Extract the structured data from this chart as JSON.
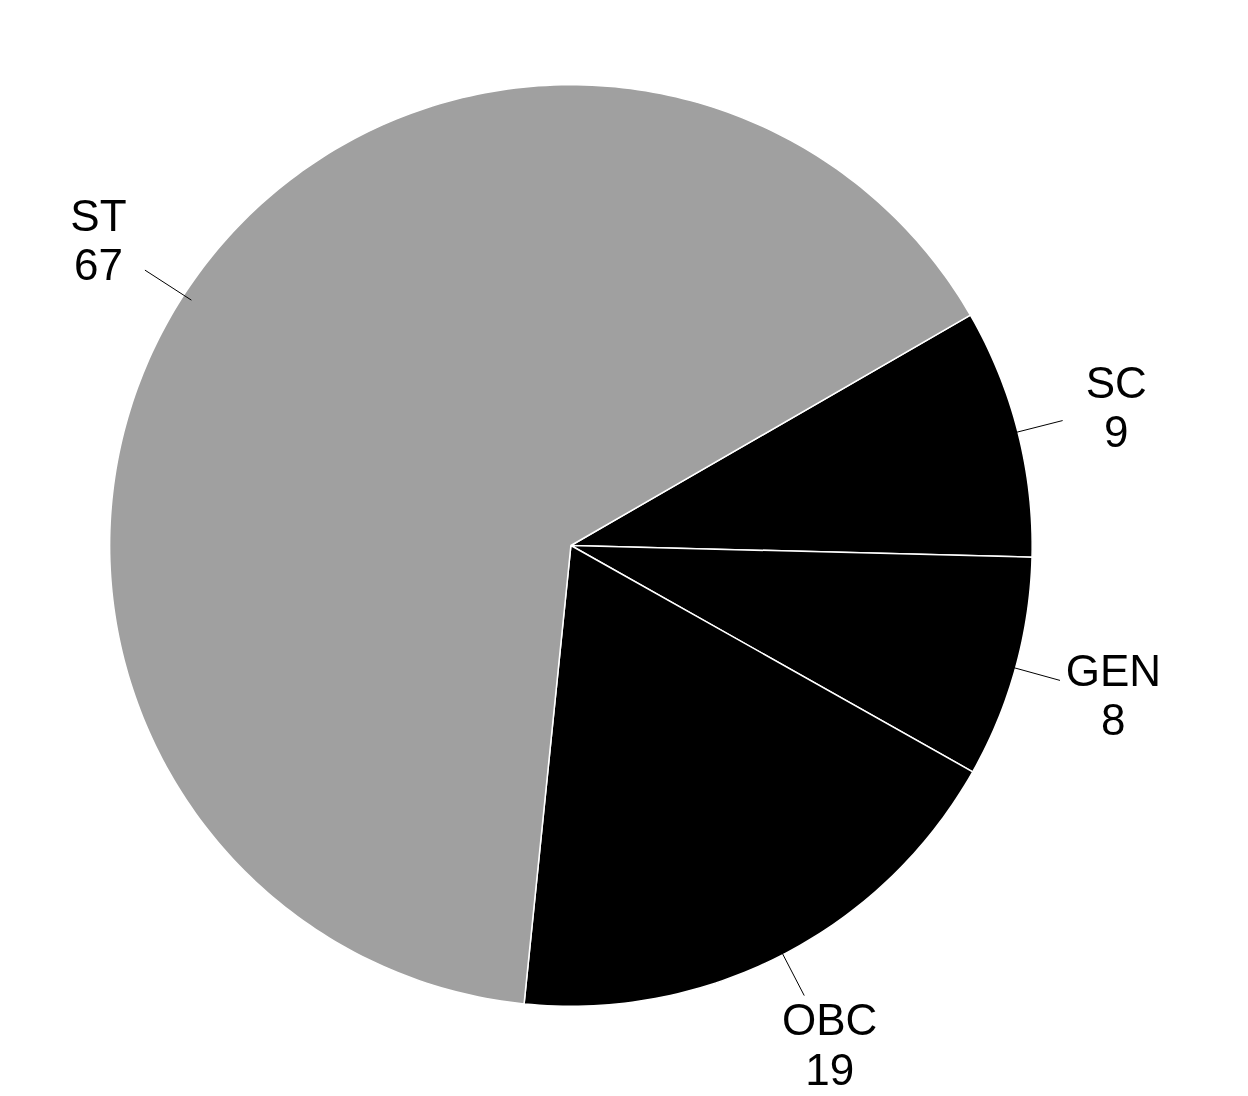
{
  "chart_data": {
    "type": "pie",
    "categories": [
      "SC",
      "GEN",
      "OBC",
      "ST"
    ],
    "values": [
      9,
      8,
      19,
      67
    ],
    "data_labels": true,
    "colors": [
      "#000000",
      "#000000",
      "#000000",
      "#a0a0a0"
    ]
  }
}
